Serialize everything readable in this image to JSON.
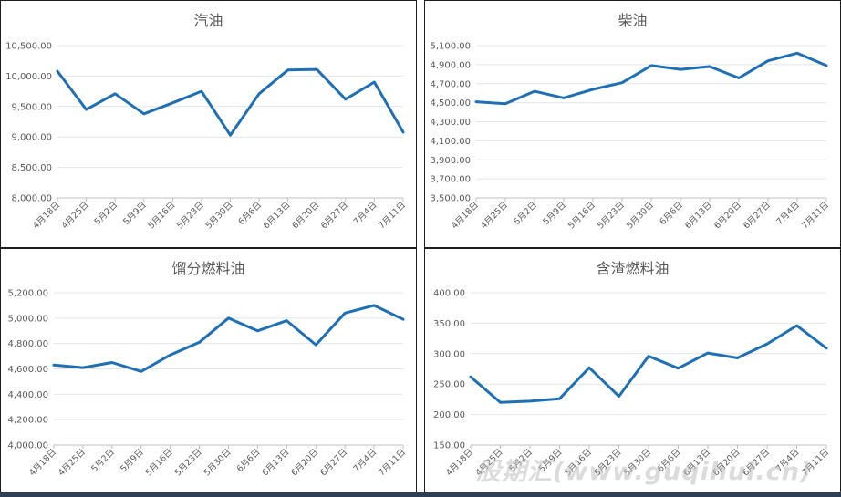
{
  "chart_data": [
    {
      "type": "line",
      "title": "汽油",
      "categories": [
        "4月18日",
        "4月25日",
        "5月2日",
        "5月9日",
        "5月16日",
        "5月23日",
        "5月30日",
        "6月6日",
        "6月13日",
        "6月20日",
        "6月27日",
        "7月4日",
        "7月11日"
      ],
      "values": [
        10080,
        9450,
        9710,
        9380,
        9560,
        9750,
        9030,
        9710,
        10100,
        10110,
        9620,
        9900,
        9080
      ],
      "ylim": [
        8000,
        10500
      ],
      "yticks": [
        "8,000.00",
        "8,500.00",
        "9,000.00",
        "9,500.00",
        "10,000.00",
        "10,500.00"
      ],
      "grid": true,
      "color": "#1f6fb5"
    },
    {
      "type": "line",
      "title": "柴油",
      "categories": [
        "4月18日",
        "4月25日",
        "5月2日",
        "5月9日",
        "5月16日",
        "5月23日",
        "5月30日",
        "6月6日",
        "6月13日",
        "6月20日",
        "6月27日",
        "7月4日",
        "7月11日"
      ],
      "values": [
        4510,
        4490,
        4620,
        4550,
        4640,
        4710,
        4890,
        4850,
        4880,
        4760,
        4940,
        5020,
        4890
      ],
      "ylim": [
        3500,
        5100
      ],
      "yticks": [
        "3,500.00",
        "3,700.00",
        "3,900.00",
        "4,100.00",
        "4,300.00",
        "4,500.00",
        "4,700.00",
        "4,900.00",
        "5,100.00"
      ],
      "grid": true,
      "color": "#1f6fb5"
    },
    {
      "type": "line",
      "title": "馏分燃料油",
      "categories": [
        "4月18日",
        "4月25日",
        "5月2日",
        "5月9日",
        "5月16日",
        "5月23日",
        "5月30日",
        "6月6日",
        "6月13日",
        "6月20日",
        "6月27日",
        "7月4日",
        "7月11日"
      ],
      "values": [
        4630,
        4610,
        4650,
        4580,
        4710,
        4810,
        5000,
        4900,
        4980,
        4790,
        5040,
        5100,
        4990
      ],
      "ylim": [
        4000,
        5200
      ],
      "yticks": [
        "4,000.00",
        "4,200.00",
        "4,400.00",
        "4,600.00",
        "4,800.00",
        "5,000.00",
        "5,200.00"
      ],
      "grid": true,
      "color": "#1f6fb5"
    },
    {
      "type": "line",
      "title": "含渣燃料油",
      "categories": [
        "4月18日",
        "4月25日",
        "5月2日",
        "5月9日",
        "5月16日",
        "5月23日",
        "5月30日",
        "6月6日",
        "6月13日",
        "6月20日",
        "6月27日",
        "7月4日",
        "7月11日"
      ],
      "values": [
        262,
        220,
        222,
        226,
        277,
        230,
        296,
        276,
        301,
        293,
        316,
        346,
        309
      ],
      "ylim": [
        150,
        400
      ],
      "yticks": [
        "150.00",
        "200.00",
        "250.00",
        "300.00",
        "350.00",
        "400.00"
      ],
      "grid": true,
      "color": "#1f6fb5"
    }
  ],
  "watermark": "股期汇(www.guqihui.cn)"
}
